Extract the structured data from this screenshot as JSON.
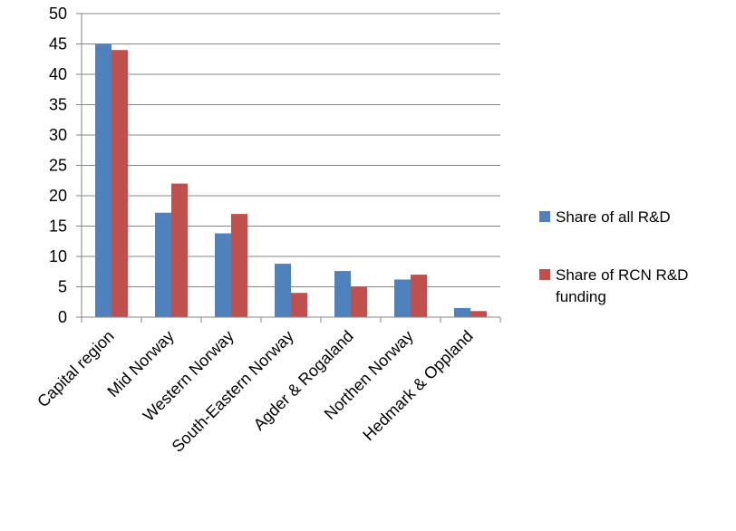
{
  "chart_data": {
    "type": "bar",
    "categories": [
      "Capital region",
      "Mid Norway",
      "Western Norway",
      "South-Eastern Norway",
      "Agder & Rogaland",
      "Northen Norway",
      "Hedmark & Oppland"
    ],
    "series": [
      {
        "name": "Share of all R&D",
        "color": "#4F81BD",
        "values": [
          45,
          17.2,
          13.8,
          8.8,
          7.6,
          6.2,
          1.5
        ]
      },
      {
        "name": "Share of RCN R&D funding",
        "color": "#C0504D",
        "values": [
          44,
          22,
          17,
          4,
          5,
          7,
          1
        ]
      }
    ],
    "yticks": [
      "0",
      "5",
      "10",
      "15",
      "20",
      "25",
      "30",
      "35",
      "40",
      "45",
      "50"
    ],
    "ylim": [
      0,
      50
    ],
    "grid": true,
    "legend_position": "right"
  }
}
